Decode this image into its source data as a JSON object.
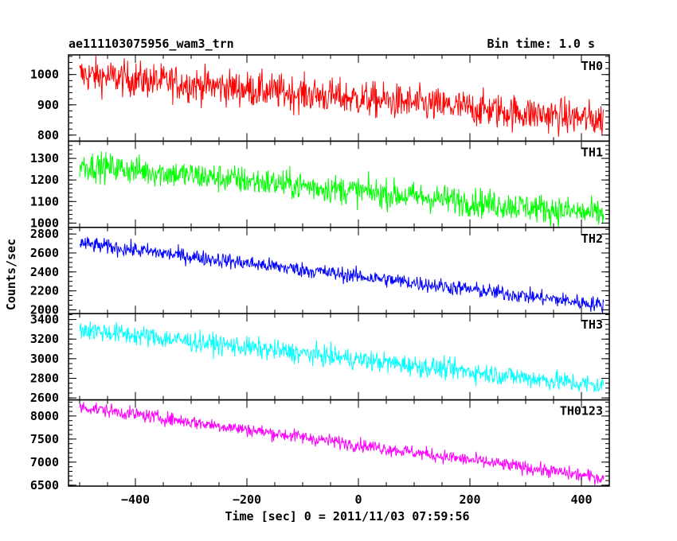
{
  "header": {
    "title": "ae111103075956_wam3_trn",
    "bin_time": "Bin time: 1.0 s"
  },
  "chart_data": {
    "type": "line",
    "title": "ae111103075956_wam3_trn",
    "xlabel": "Time [sec] 0 = 2011/11/03 07:59:56",
    "ylabel": "Counts/sec",
    "xlim": [
      -520,
      450
    ],
    "x_ticks": [
      -400,
      -200,
      0,
      200,
      400
    ],
    "x_minor_step": 50,
    "data_range_x": [
      -500,
      440
    ],
    "grid": false,
    "panels": [
      {
        "name": "TH0",
        "color": "#ff0000",
        "ylim": [
          780,
          1065
        ],
        "y_ticks": [
          800,
          900,
          1000
        ],
        "minor_step": 20,
        "trend_start": 1000,
        "trend_end": 850,
        "noise": 42
      },
      {
        "name": "TH1",
        "color": "#00ff00",
        "ylim": [
          980,
          1380
        ],
        "y_ticks": [
          1000,
          1100,
          1200,
          1300
        ],
        "minor_step": 20,
        "trend_start": 1270,
        "trend_end": 1040,
        "noise": 48
      },
      {
        "name": "TH2",
        "color": "#0000ff",
        "ylim": [
          1960,
          2870
        ],
        "y_ticks": [
          2000,
          2200,
          2400,
          2600,
          2800
        ],
        "minor_step": 50,
        "trend_start": 2700,
        "trend_end": 2050,
        "noise": 58
      },
      {
        "name": "TH3",
        "color": "#00ffff",
        "ylim": [
          2580,
          3460
        ],
        "y_ticks": [
          2600,
          2800,
          3000,
          3200,
          3400
        ],
        "minor_step": 50,
        "trend_start": 3300,
        "trend_end": 2720,
        "noise": 75
      },
      {
        "name": "TH0123",
        "color": "#ff00ff",
        "ylim": [
          6480,
          8350
        ],
        "y_ticks": [
          6500,
          7000,
          7500,
          8000
        ],
        "minor_step": 100,
        "trend_start": 8200,
        "trend_end": 6650,
        "noise": 105
      }
    ]
  }
}
